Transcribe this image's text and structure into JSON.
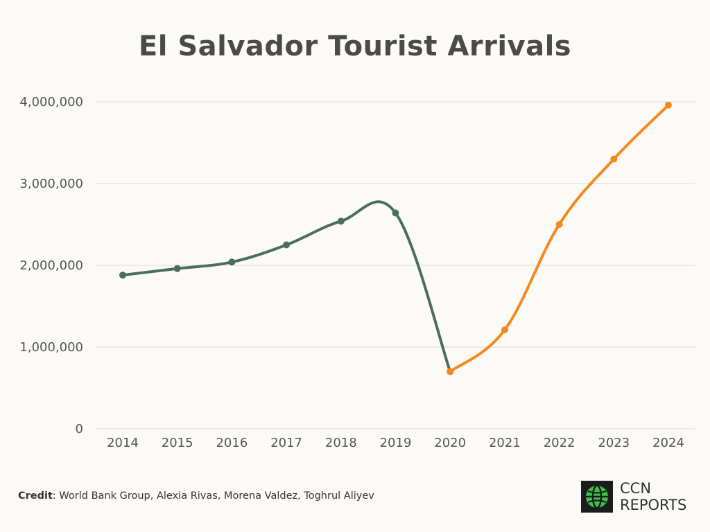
{
  "chart_data": {
    "type": "line",
    "title": "El Salvador Tourist Arrivals",
    "x": [
      "2014",
      "2015",
      "2016",
      "2017",
      "2018",
      "2019",
      "2020",
      "2021",
      "2022",
      "2023",
      "2024"
    ],
    "series": [
      {
        "values": [
          1880000,
          1960000,
          2040000,
          2250000,
          2540000,
          2640000,
          700000,
          null,
          null,
          null,
          null
        ],
        "color": "#4a6e5d"
      },
      {
        "values": [
          null,
          null,
          null,
          null,
          null,
          null,
          700000,
          1210000,
          2500000,
          3300000,
          3960000
        ],
        "color": "#f5891e"
      }
    ],
    "ylim": [
      0,
      4000000
    ],
    "yticks": [
      "0",
      "1,000,000",
      "2,000,000",
      "3,000,000",
      "4,000,000"
    ],
    "grid": true
  },
  "credit": {
    "label": "Credit",
    "text": ": World Bank Group, Alexia Rivas, Morena Valdez, Toghrul Aliyev"
  },
  "logo": {
    "line1": "CCN",
    "line2": "REPORTS",
    "icon": "globe-icon",
    "icon_color": "#3cc24a"
  }
}
